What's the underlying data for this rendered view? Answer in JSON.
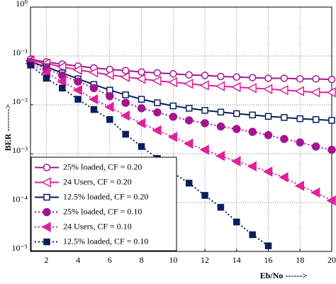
{
  "chart_data": {
    "type": "line",
    "xlabel": "Eb/No ------>",
    "ylabel": "BER -------->",
    "x": [
      1,
      2,
      3,
      4,
      5,
      6,
      7,
      8,
      9,
      10,
      11,
      12,
      13,
      14,
      15,
      16,
      17,
      18,
      19,
      20
    ],
    "xlim": [
      1,
      20
    ],
    "xticks": [
      2,
      4,
      6,
      8,
      10,
      12,
      14,
      16,
      18,
      20
    ],
    "ylim": [
      1e-05,
      1
    ],
    "log_y": true,
    "yticks": [
      {
        "value": 1e-05,
        "label": "10⁻⁵"
      },
      {
        "value": 0.0001,
        "label": "10⁻⁴"
      },
      {
        "value": 0.001,
        "label": "10⁻³"
      },
      {
        "value": 0.01,
        "label": "10⁻²"
      },
      {
        "value": 0.1,
        "label": "10⁻¹"
      },
      {
        "value": 1,
        "label": "10⁰"
      }
    ],
    "grid": true,
    "legend": "lower left",
    "series": [
      {
        "name": "25% loaded, CF = 0.20",
        "color": "#a3158f",
        "marker": "circle",
        "filled": false,
        "dash": "solid",
        "values": [
          0.085,
          0.075,
          0.068,
          0.062,
          0.057,
          0.053,
          0.05,
          0.047,
          0.045,
          0.043,
          0.041,
          0.04,
          0.038,
          0.037,
          0.036,
          0.035,
          0.035,
          0.034,
          0.034,
          0.033
        ]
      },
      {
        "name": "24 Users, CF = 0.20",
        "color": "#e0209b",
        "marker": "triangle",
        "filled": false,
        "dash": "solid",
        "values": [
          0.08,
          0.07,
          0.06,
          0.052,
          0.046,
          0.041,
          0.037,
          0.034,
          0.031,
          0.029,
          0.027,
          0.025,
          0.024,
          0.023,
          0.022,
          0.021,
          0.02,
          0.019,
          0.018,
          0.018
        ]
      },
      {
        "name": "12.5% loaded, CF = 0.20",
        "color": "#0b1e5b",
        "marker": "square",
        "filled": false,
        "dash": "solid",
        "values": [
          0.075,
          0.06,
          0.045,
          0.034,
          0.026,
          0.02,
          0.016,
          0.013,
          0.011,
          0.0095,
          0.0085,
          0.0077,
          0.0071,
          0.0066,
          0.0062,
          0.0058,
          0.0055,
          0.0052,
          0.005,
          0.0048
        ]
      },
      {
        "name": "25% loaded, CF = 0.10",
        "color": "#a3158f",
        "marker": "circle",
        "filled": true,
        "dash": "dotted",
        "values": [
          0.075,
          0.055,
          0.04,
          0.03,
          0.022,
          0.015,
          0.011,
          0.0085,
          0.007,
          0.0057,
          0.0048,
          0.0042,
          0.0036,
          0.0032,
          0.0028,
          0.0024,
          0.002,
          0.0017,
          0.0014,
          0.0012
        ]
      },
      {
        "name": "24 Users, CF = 0.10",
        "color": "#e0209b",
        "marker": "triangle",
        "filled": true,
        "dash": "dotted",
        "values": [
          0.07,
          0.045,
          0.03,
          0.02,
          0.013,
          0.009,
          0.006,
          0.0042,
          0.003,
          0.0022,
          0.0016,
          0.0012,
          0.0009,
          0.0007,
          0.00055,
          0.00043,
          0.00033,
          0.00022,
          0.00016,
          0.00011
        ]
      },
      {
        "name": "12.5% loaded, CF = 0.10",
        "color": "#0b1e5b",
        "marker": "square",
        "filled": true,
        "dash": "dotted",
        "values": [
          0.065,
          0.035,
          0.022,
          0.013,
          0.008,
          0.005,
          0.0025,
          0.0014,
          0.0008,
          0.0004,
          0.00025,
          0.00014,
          8e-05,
          4e-05,
          2.2e-05,
          1.3e-05,
          null,
          null,
          null,
          null
        ]
      }
    ]
  }
}
